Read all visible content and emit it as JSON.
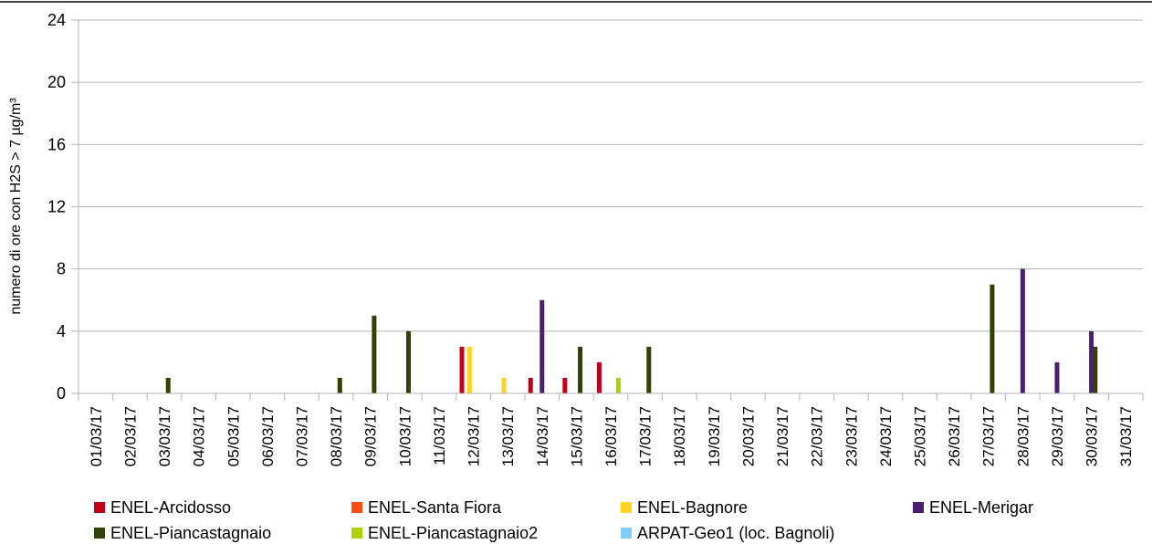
{
  "chart_data": {
    "type": "bar",
    "title": "",
    "xlabel": "",
    "ylabel": "numero di ore con H2S > 7 µg/m³",
    "ylim": [
      0,
      24
    ],
    "yticks": [
      0,
      4,
      8,
      12,
      16,
      20,
      24
    ],
    "grid": true,
    "legend_position": "bottom",
    "categories": [
      "01/03/17",
      "02/03/17",
      "03/03/17",
      "04/03/17",
      "05/03/17",
      "06/03/17",
      "07/03/17",
      "08/03/17",
      "09/03/17",
      "10/03/17",
      "11/03/17",
      "12/03/17",
      "13/03/17",
      "14/03/17",
      "15/03/17",
      "16/03/17",
      "17/03/17",
      "18/03/17",
      "19/03/17",
      "20/03/17",
      "21/03/17",
      "22/03/17",
      "23/03/17",
      "24/03/17",
      "25/03/17",
      "26/03/17",
      "27/03/17",
      "28/03/17",
      "29/03/17",
      "30/03/17",
      "31/03/17"
    ],
    "series": [
      {
        "name": "ENEL-Arcidosso",
        "color": "#c00018",
        "values": [
          0,
          0,
          0,
          0,
          0,
          0,
          0,
          0,
          0,
          0,
          0,
          3,
          0,
          1,
          1,
          2,
          0,
          0,
          0,
          0,
          0,
          0,
          0,
          0,
          0,
          0,
          0,
          0,
          0,
          0,
          0
        ]
      },
      {
        "name": "ENEL-Santa Fiora",
        "color": "#ff4d10",
        "values": [
          0,
          0,
          0,
          0,
          0,
          0,
          0,
          0,
          0,
          0,
          0,
          0,
          0,
          0,
          0,
          0,
          0,
          0,
          0,
          0,
          0,
          0,
          0,
          0,
          0,
          0,
          0,
          0,
          0,
          0,
          0
        ]
      },
      {
        "name": "ENEL-Bagnore",
        "color": "#ffd320",
        "values": [
          0,
          0,
          0,
          0,
          0,
          0,
          0,
          0,
          0,
          0,
          0,
          3,
          1,
          0,
          0,
          0,
          0,
          0,
          0,
          0,
          0,
          0,
          0,
          0,
          0,
          0,
          0,
          0,
          0,
          0,
          0
        ]
      },
      {
        "name": "ENEL-Merigar",
        "color": "#4b1f6f",
        "values": [
          0,
          0,
          0,
          0,
          0,
          0,
          0,
          0,
          0,
          0,
          0,
          0,
          0,
          6,
          0,
          0,
          0,
          0,
          0,
          0,
          0,
          0,
          0,
          0,
          0,
          0,
          0,
          8,
          2,
          4,
          0
        ]
      },
      {
        "name": "ENEL-Piancastagnaio",
        "color": "#314004",
        "values": [
          0,
          0,
          1,
          0,
          0,
          0,
          0,
          1,
          5,
          4,
          0,
          0,
          0,
          0,
          3,
          0,
          3,
          0,
          0,
          0,
          0,
          0,
          0,
          0,
          0,
          0,
          7,
          0,
          0,
          3,
          0
        ]
      },
      {
        "name": "ENEL-Piancastagnaio2",
        "color": "#aecf00",
        "values": [
          0,
          0,
          0,
          0,
          0,
          0,
          0,
          0,
          0,
          0,
          0,
          0,
          0,
          0,
          0,
          1,
          0,
          0,
          0,
          0,
          0,
          0,
          0,
          0,
          0,
          0,
          0,
          0,
          0,
          0,
          0
        ]
      },
      {
        "name": "ARPAT-Geo1 (loc. Bagnoli)",
        "color": "#83caff",
        "values": [
          0,
          0,
          0,
          0,
          0,
          0,
          0,
          0,
          0,
          0,
          0,
          0,
          0,
          0,
          0,
          0,
          0,
          0,
          0,
          0,
          0,
          0,
          0,
          0,
          0,
          0,
          0,
          0,
          0,
          0,
          0
        ]
      }
    ]
  }
}
